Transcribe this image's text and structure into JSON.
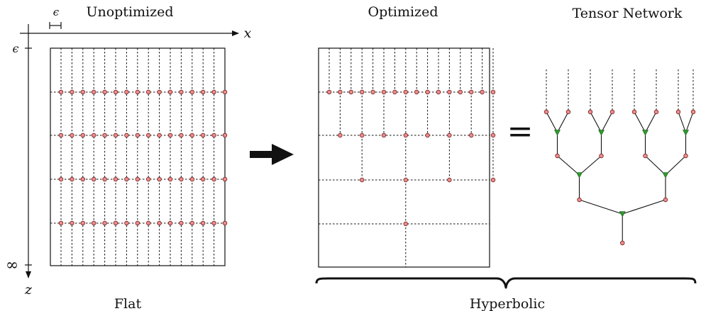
{
  "labels": {
    "unoptimized": "Unoptimized",
    "optimized": "Optimized",
    "tensor_network": "Tensor Network",
    "flat": "Flat",
    "hyperbolic": "Hyperbolic",
    "x_axis": "x",
    "z_axis": "z",
    "epsilon_top": "ϵ",
    "epsilon_left": "ϵ",
    "infinity": "∞",
    "equals": "="
  },
  "colors": {
    "node_fill": "#f08a8a",
    "node_stroke": "#6a2020",
    "triangle_fill": "#2e9a2e",
    "line": "#111111"
  },
  "grid": {
    "columns": 16,
    "flat_rows": 4,
    "optimized_node_counts": [
      16,
      8,
      4,
      1
    ]
  },
  "tree": {
    "leaves": 8,
    "levels": 3
  }
}
